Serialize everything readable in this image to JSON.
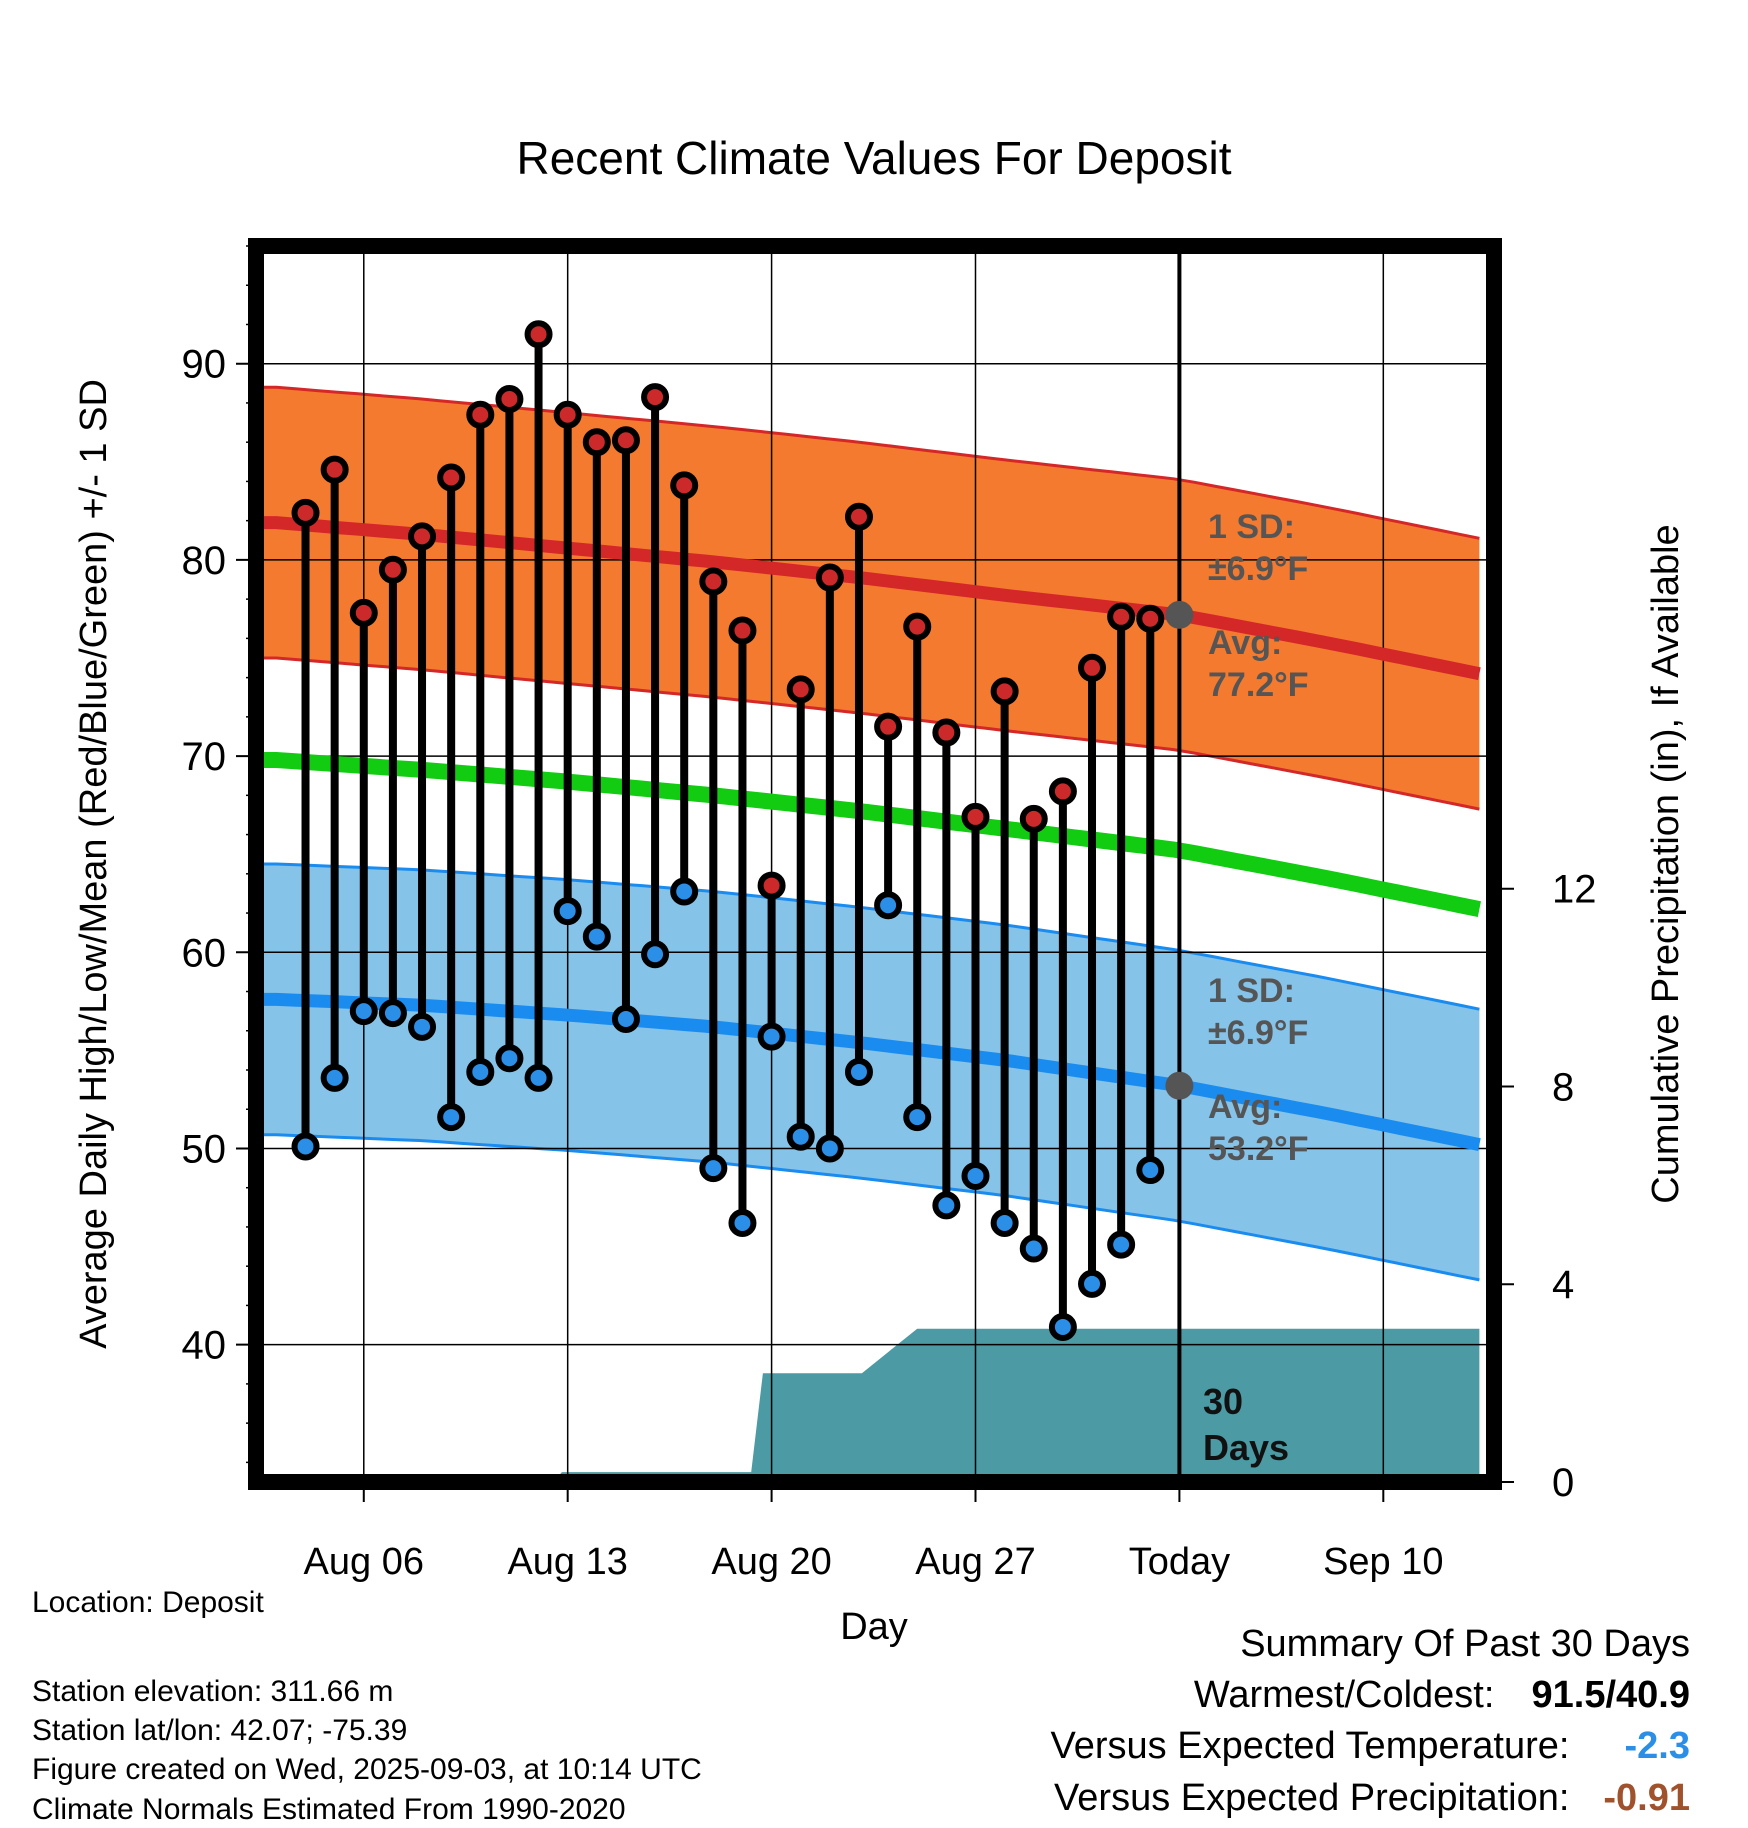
{
  "chart_data": {
    "type": "line",
    "title": "Recent Climate Values For Deposit",
    "xlabel": "Day",
    "ylabel": "Average Daily High/Low/Mean (Red/Blue/Green) +/- 1 SD",
    "y2label": "Cumulative Precipitation (in), If Available",
    "ylim": [
      33,
      96
    ],
    "y2lim": [
      0,
      25
    ],
    "xlim": [
      -0.7,
      41.8
    ],
    "yticks": [
      40,
      50,
      60,
      70,
      80,
      90
    ],
    "y2ticks": [
      0,
      4,
      8,
      12
    ],
    "grid": true,
    "x_tick_labels": [
      {
        "x": 3,
        "label": "Aug 06"
      },
      {
        "x": 10,
        "label": "Aug 13"
      },
      {
        "x": 17,
        "label": "Aug 20"
      },
      {
        "x": 24,
        "label": "Aug 27"
      },
      {
        "x": 31,
        "label": "Today"
      },
      {
        "x": 38,
        "label": "Sep 10"
      }
    ],
    "today_x": 31,
    "period_label": "30 Days",
    "days_x": [
      1,
      2,
      3,
      4,
      5,
      6,
      7,
      8,
      9,
      10,
      11,
      12,
      13,
      14,
      15,
      16,
      17,
      18,
      19,
      20,
      21,
      22,
      23,
      24,
      25,
      26,
      27,
      28,
      29,
      30
    ],
    "daily_high": [
      82.4,
      84.6,
      77.3,
      79.5,
      81.2,
      84.2,
      87.4,
      88.2,
      91.5,
      87.4,
      86.0,
      86.1,
      88.3,
      83.8,
      78.9,
      76.4,
      63.4,
      73.4,
      79.1,
      82.2,
      71.5,
      76.6,
      71.2,
      66.9,
      73.3,
      66.8,
      68.2,
      74.5,
      77.1,
      77.0
    ],
    "daily_low": [
      50.1,
      53.6,
      57.0,
      56.9,
      56.2,
      51.6,
      53.9,
      54.6,
      53.6,
      62.1,
      60.8,
      56.6,
      59.9,
      63.1,
      49.0,
      46.2,
      55.7,
      50.6,
      50.0,
      53.9,
      62.4,
      51.6,
      47.1,
      48.6,
      46.2,
      44.9,
      40.9,
      43.1,
      45.1,
      48.9
    ],
    "normal_x": [
      0,
      5,
      10,
      15,
      20,
      25,
      31,
      36,
      41.3
    ],
    "normal_high": [
      81.9,
      81.3,
      80.6,
      79.9,
      79.1,
      78.2,
      77.2,
      75.8,
      74.2
    ],
    "normal_low": [
      57.6,
      57.3,
      56.8,
      56.2,
      55.4,
      54.5,
      53.2,
      51.8,
      50.2
    ],
    "normal_mean": [
      69.8,
      69.3,
      68.7,
      68.0,
      67.2,
      66.3,
      65.2,
      63.8,
      62.2
    ],
    "sd": 6.9,
    "precip_x": [
      0,
      9.5,
      9.8,
      16.3,
      16.7,
      18,
      20.1,
      22,
      41.8
    ],
    "precip_cum": [
      0,
      0,
      0.2,
      0.2,
      2.2,
      2.2,
      2.2,
      3.1,
      3.1
    ],
    "annotations": {
      "high_sd": "1 SD:",
      "high_sd_val": "±6.9°F",
      "high_avg": "Avg:",
      "high_avg_val": "77.2°F",
      "low_sd": "1 SD:",
      "low_sd_val": "±6.9°F",
      "low_avg": "Avg:",
      "low_avg_val": "53.2°F"
    },
    "colors": {
      "high_band": "#f47a30",
      "high_line": "#d42828",
      "low_band": "#86c3e8",
      "low_line": "#1a8cf0",
      "mean_line": "#11cc11",
      "precip": "#4b9aa4",
      "high_marker": "#cc2a2a",
      "low_marker": "#2b8fe8",
      "today_marker": "#555555"
    }
  },
  "footer": {
    "location": "Location: Deposit",
    "elevation": "Station elevation: 311.66 m",
    "latlon": "Station lat/lon: 42.07; -75.39",
    "created": "Figure created on Wed, 2025-09-03, at 10:14 UTC",
    "normals": "Climate Normals Estimated From 1990-2020"
  },
  "summary": {
    "title": "Summary Of Past 30 Days",
    "warm_cold_label": "Warmest/Coldest:",
    "warm_cold_value": "91.5/40.9",
    "temp_label": "Versus Expected Temperature:",
    "temp_value": "-2.3",
    "temp_color": "#2b8fe8",
    "precip_label": "Versus Expected Precipitation:",
    "precip_value": "-0.91",
    "precip_color": "#a0522d"
  }
}
